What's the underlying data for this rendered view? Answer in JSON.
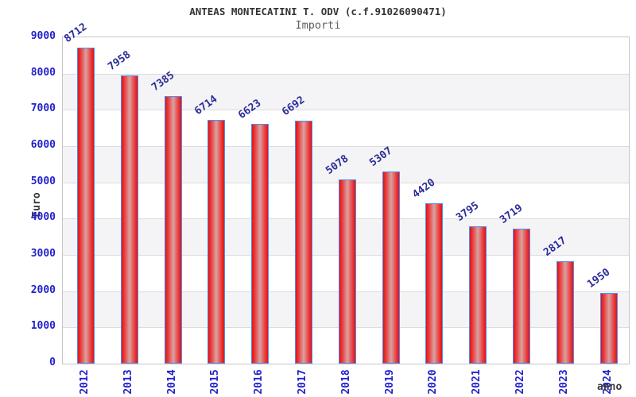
{
  "header": {
    "title": "ANTEAS MONTECATINI T. ODV (c.f.91026090471)",
    "subtitle": "Importi"
  },
  "chart_data": {
    "type": "bar",
    "title": "ANTEAS MONTECATINI T. ODV (c.f.91026090471)",
    "subtitle": "Importi",
    "xlabel": "anno",
    "ylabel": "Euro",
    "categories": [
      "2012",
      "2013",
      "2014",
      "2015",
      "2016",
      "2017",
      "2018",
      "2019",
      "2020",
      "2021",
      "2022",
      "2023",
      "2024"
    ],
    "values": [
      8712,
      7958,
      7385,
      6714,
      6623,
      6692,
      5078,
      5307,
      4420,
      3795,
      3719,
      2817,
      1950
    ],
    "ylim": [
      0,
      9000
    ],
    "ytick_step": 1000,
    "grid": true,
    "legend": false,
    "bands": "alternating 1000-unit horizontal stripes, white and light gray",
    "value_labels": "above each bar, rotated, navy blue",
    "colors": {
      "background": "#ffffff",
      "band_gray": "#f4f4f6",
      "gridline": "#dcdcdc",
      "plot_border": "#c6c6c6",
      "bar_red": "#e31212",
      "bar_highlight": "#d9a2a2",
      "bar_border_blue": "#4d8df5",
      "tick_label_blue": "#2222cc",
      "value_label_navy": "#2b2b99",
      "axis_title_gray": "#3a3a3a",
      "title_gray": "#333333",
      "subtitle_gray": "#606060"
    }
  }
}
